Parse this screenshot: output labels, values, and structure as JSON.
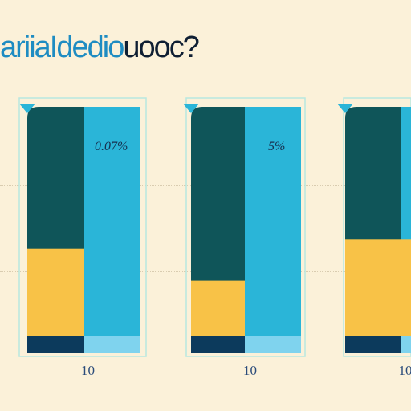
{
  "title_part1": "ariiaIdedio",
  "title_part2": "uooc?",
  "colors": {
    "background": "#fbf1d9",
    "teal_dark": "#0f5559",
    "cyan": "#2ab5d8",
    "yellow": "#f8c247",
    "navy": "#0c3a5c",
    "frame": "#b8e8e0"
  },
  "chart_data": [
    {
      "type": "bar",
      "value_label": "0.07%",
      "tick_label": "10",
      "yellow_fraction": 0.38
    },
    {
      "type": "bar",
      "value_label": "5%",
      "tick_label": "10",
      "yellow_fraction": 0.24
    },
    {
      "type": "bar",
      "value_label": "",
      "tick_label": "10",
      "yellow_fraction": 0.42
    }
  ]
}
